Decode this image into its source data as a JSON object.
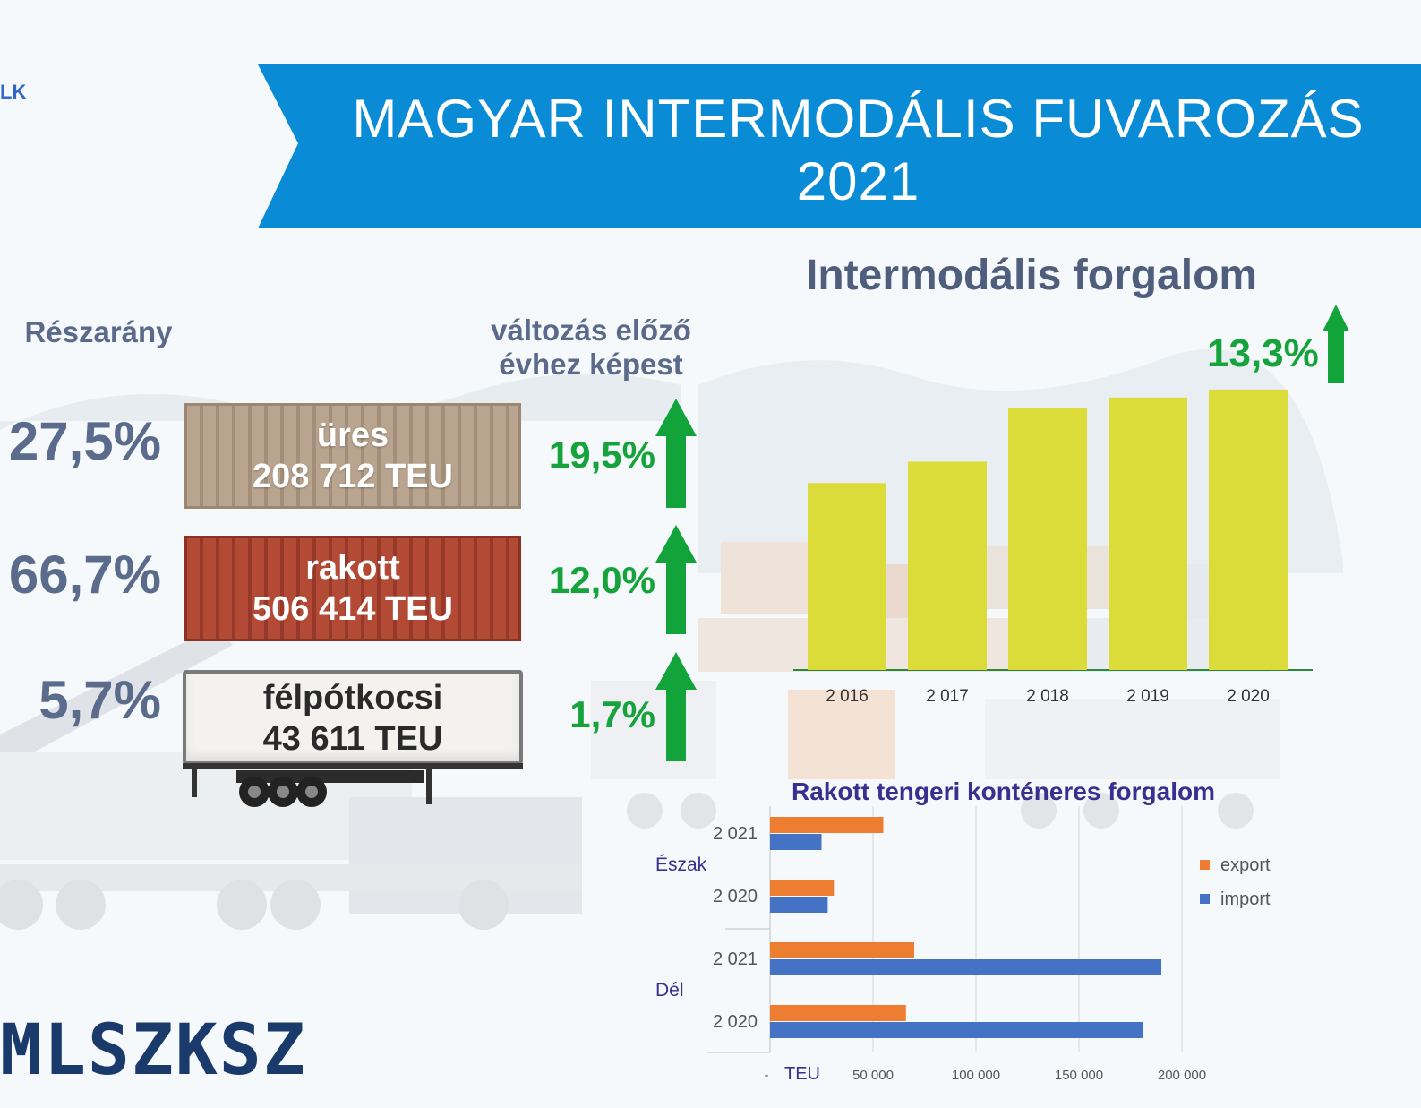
{
  "header": {
    "title_line1": "MAGYAR INTERMODÁLIS FUVAROZÁS",
    "title_line2": "2021",
    "corner_text": "LK",
    "banner_color": "#0a8bd6"
  },
  "left_panel": {
    "share_heading": "Részarány",
    "change_heading_line1": "változás előző",
    "change_heading_line2": "évhez képest",
    "rows": [
      {
        "share": "27,5%",
        "label": "üres",
        "value": "208 712 TEU",
        "change": "19,5%",
        "trend": "up"
      },
      {
        "share": "66,7%",
        "label": "rakott",
        "value": "506 414 TEU",
        "change": "12,0%",
        "trend": "up"
      },
      {
        "share": "5,7%",
        "label": "félpótkocsi",
        "value": "43 611 TEU",
        "change": "1,7%",
        "trend": "up"
      }
    ],
    "arrow_color": "#12a33a"
  },
  "logo": {
    "text": "MLSZKSZ"
  },
  "chart_data": [
    {
      "type": "bar",
      "title": "Intermodális forgalom",
      "categories": [
        "2 016",
        "2 017",
        "2 018",
        "2 019",
        "2 020"
      ],
      "values": [
        0.7,
        0.78,
        0.98,
        1.02,
        1.05
      ],
      "value_note": "13,3%",
      "bar_color": "#dbdc3a",
      "ylim": [
        0,
        1.1
      ]
    },
    {
      "type": "bar",
      "orientation": "horizontal",
      "title": "Rakott tengeri konténeres forgalom",
      "groups": [
        {
          "name": "Észak",
          "rows": [
            {
              "year": "2 021",
              "export": 55000,
              "import": 25000
            },
            {
              "year": "2 020",
              "export": 31000,
              "import": 28000
            }
          ]
        },
        {
          "name": "Dél",
          "rows": [
            {
              "year": "2 021",
              "export": 70000,
              "import": 190000
            },
            {
              "year": "2 020",
              "export": 66000,
              "import": 181000
            }
          ]
        }
      ],
      "series": [
        {
          "name": "export",
          "color": "#ed7d31"
        },
        {
          "name": "import",
          "color": "#4472c4"
        }
      ],
      "xlabel": "TEU",
      "x_ticks": [
        "-",
        "50 000",
        "100 000",
        "150 000",
        "200 000"
      ],
      "xlim": [
        0,
        200000
      ]
    }
  ]
}
